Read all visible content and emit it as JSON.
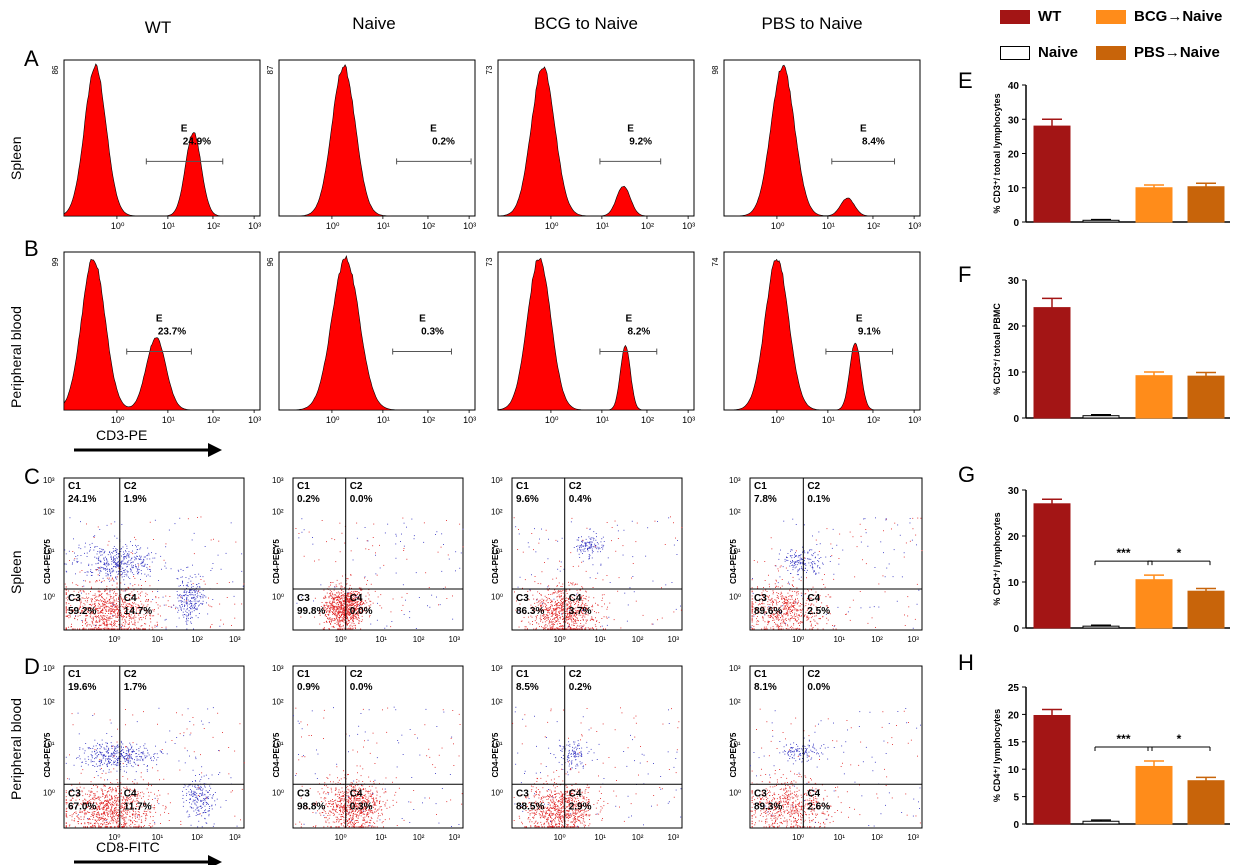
{
  "columns": [
    "WT",
    "Naive",
    "BCG to Naive",
    "PBS to Naive"
  ],
  "panel_letters": [
    "A",
    "B",
    "C",
    "D",
    "E",
    "F",
    "G",
    "H"
  ],
  "row_labels": {
    "spleen": "Spleen",
    "blood": "Peripheral blood"
  },
  "axis_labels": {
    "histogram_x": "CD3-PE",
    "dot_x": "CD8-FITC",
    "dot_y": "CD4-PECY5"
  },
  "gate_label": "E",
  "quadrant_labels": [
    "C1",
    "C2",
    "C3",
    "C4"
  ],
  "colors": {
    "wt": "#a31515",
    "naive": "#ffffff",
    "bcg": "#ff8c1a",
    "pbs": "#c8640a",
    "histogram": "#ff0000"
  },
  "legend": [
    {
      "key": "wt",
      "label": "WT"
    },
    {
      "key": "bcg",
      "label": "BCG→Naive"
    },
    {
      "key": "naive",
      "label": "Naive"
    },
    {
      "key": "pbs",
      "label": "PBS→Naive"
    }
  ],
  "chart_data": [
    {
      "type": "histogram",
      "panel": "A",
      "tissue": "Spleen",
      "xlabel": "CD3-PE",
      "x_ticks": [
        "10⁰",
        "10¹",
        "10²",
        "10³"
      ],
      "samples": [
        {
          "column": "WT",
          "ymax": "86",
          "gate": "E",
          "gate_percent": "24.9%"
        },
        {
          "column": "Naive",
          "ymax": "87",
          "gate": "E",
          "gate_percent": "0.2%"
        },
        {
          "column": "BCG to Naive",
          "ymax": "73",
          "gate": "E",
          "gate_percent": "9.2%"
        },
        {
          "column": "PBS to Naive",
          "ymax": "98",
          "gate": "E",
          "gate_percent": "8.4%"
        }
      ]
    },
    {
      "type": "histogram",
      "panel": "B",
      "tissue": "Peripheral blood",
      "xlabel": "CD3-PE",
      "x_ticks": [
        "10⁰",
        "10¹",
        "10²",
        "10³"
      ],
      "samples": [
        {
          "column": "WT",
          "ymax": "99",
          "gate": "E",
          "gate_percent": "23.7%"
        },
        {
          "column": "Naive",
          "ymax": "96",
          "gate": "E",
          "gate_percent": "0.3%"
        },
        {
          "column": "BCG to Naive",
          "ymax": "73",
          "gate": "E",
          "gate_percent": "8.2%"
        },
        {
          "column": "PBS to Naive",
          "ymax": "74",
          "gate": "E",
          "gate_percent": "9.1%"
        }
      ]
    },
    {
      "type": "scatter",
      "panel": "C",
      "tissue": "Spleen",
      "xlabel": "CD8-FITC",
      "ylabel": "CD4-PECY5",
      "x_ticks": [
        "10⁰",
        "10¹",
        "10²",
        "10³"
      ],
      "y_ticks": [
        "10⁰",
        "10¹",
        "10²",
        "10³"
      ],
      "samples": [
        {
          "column": "WT",
          "C1": "24.1%",
          "C2": "1.9%",
          "C3": "59.2%",
          "C4": "14.7%"
        },
        {
          "column": "Naive",
          "C1": "0.2%",
          "C2": "0.0%",
          "C3": "99.8%",
          "C4": "0.0%"
        },
        {
          "column": "BCG to Naive",
          "C1": "9.6%",
          "C2": "0.4%",
          "C3": "86.3%",
          "C4": "3.7%"
        },
        {
          "column": "PBS to Naive",
          "C1": "7.8%",
          "C2": "0.1%",
          "C3": "89.6%",
          "C4": "2.5%"
        }
      ]
    },
    {
      "type": "scatter",
      "panel": "D",
      "tissue": "Peripheral blood",
      "xlabel": "CD8-FITC",
      "ylabel": "CD4-PECY5",
      "x_ticks": [
        "10⁰",
        "10¹",
        "10²",
        "10³"
      ],
      "y_ticks": [
        "10⁰",
        "10¹",
        "10²",
        "10³"
      ],
      "samples": [
        {
          "column": "WT",
          "C1": "19.6%",
          "C2": "1.7%",
          "C3": "67.0%",
          "C4": "11.7%"
        },
        {
          "column": "Naive",
          "C1": "0.9%",
          "C2": "0.0%",
          "C3": "98.8%",
          "C4": "0.3%"
        },
        {
          "column": "BCG to Naive",
          "C1": "8.5%",
          "C2": "0.2%",
          "C3": "88.5%",
          "C4": "2.9%"
        },
        {
          "column": "PBS to Naive",
          "C1": "8.1%",
          "C2": "0.0%",
          "C3": "89.3%",
          "C4": "2.6%"
        }
      ]
    },
    {
      "type": "bar",
      "panel": "E",
      "categories": [
        "WT",
        "Naive",
        "BCG→Naive",
        "PBS→Naive"
      ],
      "values": [
        28,
        0.5,
        10,
        10.3
      ],
      "errors": [
        2,
        0.2,
        0.8,
        1
      ],
      "ylabel": "% CD3⁺/ totoal lymphocytes",
      "ylim": [
        0,
        40
      ],
      "yticks": [
        0,
        10,
        20,
        30,
        40
      ],
      "significance": []
    },
    {
      "type": "bar",
      "panel": "F",
      "categories": [
        "WT",
        "Naive",
        "BCG→Naive",
        "PBS→Naive"
      ],
      "values": [
        24,
        0.5,
        9.2,
        9.1
      ],
      "errors": [
        2,
        0.2,
        0.8,
        0.8
      ],
      "ylabel": "% CD3⁺/ totoal PBMC",
      "ylim": [
        0,
        30
      ],
      "yticks": [
        0,
        10,
        20,
        30
      ],
      "significance": []
    },
    {
      "type": "bar",
      "panel": "G",
      "categories": [
        "WT",
        "Naive",
        "BCG→Naive",
        "PBS→Naive"
      ],
      "values": [
        27,
        0.4,
        10.5,
        8
      ],
      "errors": [
        1,
        0.2,
        1,
        0.6
      ],
      "ylabel": "% CD4⁺/ lymphocytes",
      "ylim": [
        0,
        30
      ],
      "yticks": [
        0,
        10,
        20,
        30
      ],
      "significance": [
        {
          "from": 1,
          "to": 2,
          "label": "***"
        },
        {
          "from": 2,
          "to": 3,
          "label": "*"
        }
      ]
    },
    {
      "type": "bar",
      "panel": "H",
      "categories": [
        "WT",
        "Naive",
        "BCG→Naive",
        "PBS→Naive"
      ],
      "values": [
        19.8,
        0.5,
        10.5,
        7.9
      ],
      "errors": [
        1.1,
        0.2,
        1,
        0.6
      ],
      "ylabel": "% CD4⁺/ lymphocytes",
      "ylim": [
        0,
        25
      ],
      "yticks": [
        0,
        5,
        10,
        15,
        20,
        25
      ],
      "significance": [
        {
          "from": 1,
          "to": 2,
          "label": "***"
        },
        {
          "from": 2,
          "to": 3,
          "label": "*"
        }
      ]
    }
  ]
}
